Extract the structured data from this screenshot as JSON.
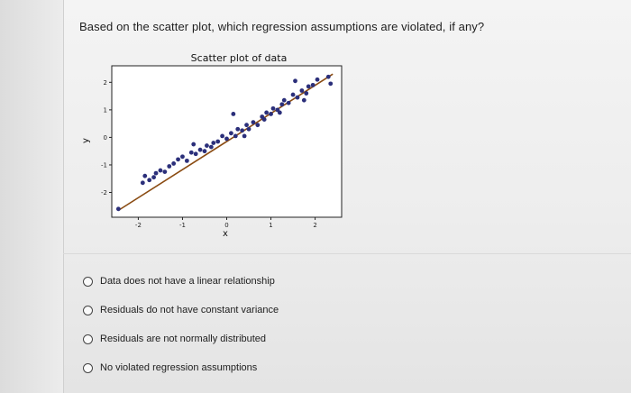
{
  "question": {
    "text": "Based on the scatter plot, which regression assumptions are violated, if any?"
  },
  "chart_data": {
    "type": "scatter",
    "title": "Scatter plot of data",
    "xlabel": "x",
    "ylabel": "y",
    "xlim": [
      -2.6,
      2.6
    ],
    "ylim": [
      -2.9,
      2.6
    ],
    "xticks": [
      "-2",
      "-1",
      "0",
      "1",
      "2"
    ],
    "yticks": [
      "2",
      "1",
      "0",
      "-1",
      "-2"
    ],
    "grid": false,
    "points": [
      [
        -2.45,
        -2.6
      ],
      [
        -1.9,
        -1.65
      ],
      [
        -1.85,
        -1.4
      ],
      [
        -1.75,
        -1.55
      ],
      [
        -1.65,
        -1.45
      ],
      [
        -1.6,
        -1.3
      ],
      [
        -1.5,
        -1.2
      ],
      [
        -1.4,
        -1.25
      ],
      [
        -1.3,
        -1.05
      ],
      [
        -1.2,
        -0.95
      ],
      [
        -1.1,
        -0.8
      ],
      [
        -1.0,
        -0.7
      ],
      [
        -0.9,
        -0.85
      ],
      [
        -0.8,
        -0.55
      ],
      [
        -0.7,
        -0.6
      ],
      [
        -0.6,
        -0.45
      ],
      [
        -0.5,
        -0.5
      ],
      [
        -0.45,
        -0.3
      ],
      [
        -0.35,
        -0.35
      ],
      [
        -0.3,
        -0.2
      ],
      [
        -0.2,
        -0.15
      ],
      [
        -0.1,
        0.05
      ],
      [
        0.0,
        -0.05
      ],
      [
        0.1,
        0.15
      ],
      [
        0.2,
        0.05
      ],
      [
        0.25,
        0.3
      ],
      [
        0.35,
        0.25
      ],
      [
        0.45,
        0.45
      ],
      [
        0.5,
        0.3
      ],
      [
        0.6,
        0.55
      ],
      [
        0.7,
        0.45
      ],
      [
        0.8,
        0.75
      ],
      [
        0.85,
        0.65
      ],
      [
        0.9,
        0.9
      ],
      [
        1.0,
        0.85
      ],
      [
        1.05,
        1.05
      ],
      [
        1.15,
        1.0
      ],
      [
        1.25,
        1.2
      ],
      [
        1.3,
        1.35
      ],
      [
        1.4,
        1.25
      ],
      [
        1.5,
        1.55
      ],
      [
        1.6,
        1.45
      ],
      [
        1.7,
        1.7
      ],
      [
        1.8,
        1.6
      ],
      [
        1.85,
        1.85
      ],
      [
        1.95,
        1.9
      ],
      [
        2.05,
        2.1
      ],
      [
        0.15,
        0.85
      ],
      [
        0.4,
        0.05
      ],
      [
        1.2,
        0.9
      ],
      [
        1.75,
        1.35
      ],
      [
        -0.75,
        -0.25
      ],
      [
        1.55,
        2.05
      ],
      [
        2.3,
        2.2
      ],
      [
        2.35,
        1.95
      ]
    ],
    "fit_line": {
      "x": [
        -2.45,
        2.4
      ],
      "y": [
        -2.65,
        2.3
      ]
    },
    "colors": {
      "points": "#2b2f7a",
      "line": "#8a4b12",
      "frame": "#222222"
    }
  },
  "options": [
    {
      "label": "Data does not have a linear relationship"
    },
    {
      "label": "Residuals do not have constant variance"
    },
    {
      "label": "Residuals are not normally distributed"
    },
    {
      "label": "No violated regression assumptions"
    }
  ]
}
